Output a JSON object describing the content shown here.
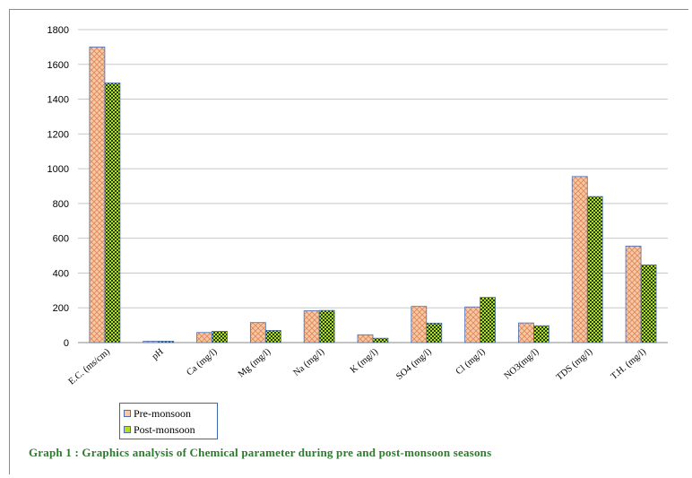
{
  "chart_data": {
    "type": "bar",
    "categories": [
      "E.C. (ms/cm)",
      "pH",
      "Ca (mg/l)",
      "Mg (mg/l)",
      "Na (mg/l)",
      "K (mg/l)",
      "SO4 (mg/l)",
      "Cl (mg/l)",
      "NO3(mg/l)",
      "TDS (mg/l)",
      "T.H. (mg/l)"
    ],
    "series": [
      {
        "name": "Pre-monsoon",
        "values": [
          1700,
          8,
          58,
          115,
          183,
          45,
          208,
          205,
          113,
          955,
          555
        ]
      },
      {
        "name": "Post-monsoon",
        "values": [
          1493,
          8,
          65,
          70,
          185,
          25,
          112,
          260,
          97,
          840,
          447
        ]
      }
    ],
    "yticks": [
      "0",
      "200",
      "400",
      "600",
      "800",
      "1000",
      "1200",
      "1400",
      "1600",
      "1800"
    ],
    "ylim": [
      0,
      1800
    ],
    "grid": true,
    "legend_position": "bottom-left",
    "colors": {
      "pre_fill": "#f6c9a3",
      "pre_hatch": "#e0875c",
      "post_fill": "#b7dd1e",
      "post_check": "#1f3d12",
      "grid": "#c8c8c8"
    },
    "title": "Graph  1 : Graphics analysis of Chemical parameter during pre and post-monsoon seasons"
  }
}
